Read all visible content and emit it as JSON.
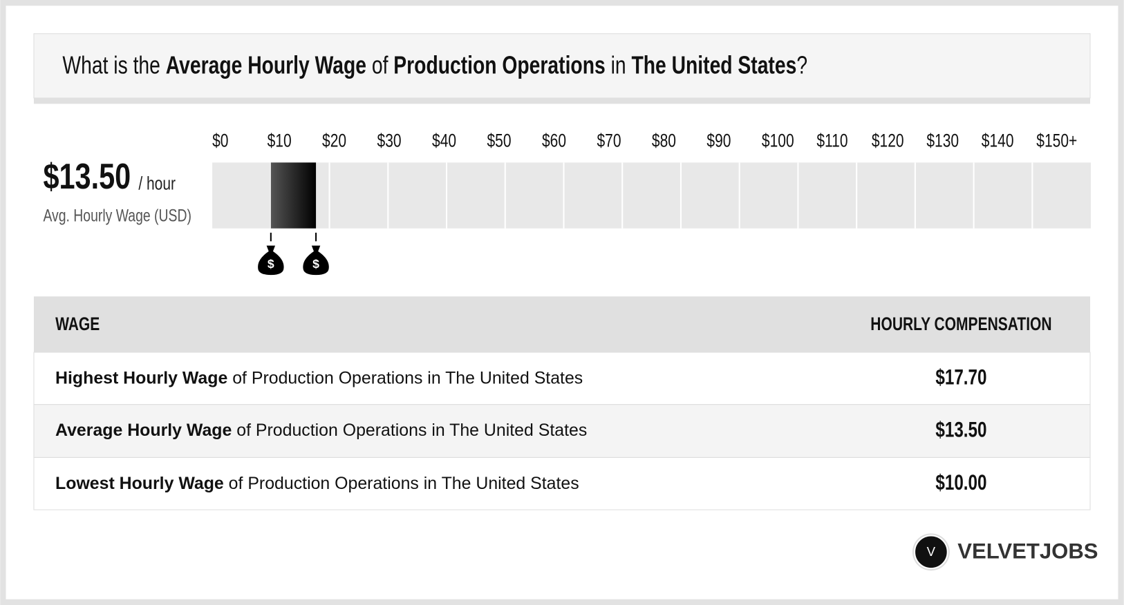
{
  "header": {
    "title": [
      {
        "text": "What is the ",
        "bold": false
      },
      {
        "text": "Average Hourly Wage",
        "bold": true
      },
      {
        "text": " of ",
        "bold": false
      },
      {
        "text": "Production Operations",
        "bold": true
      },
      {
        "text": " in ",
        "bold": false
      },
      {
        "text": "The United States",
        "bold": true
      },
      {
        "text": "?",
        "bold": false
      }
    ]
  },
  "summary": {
    "value": "$13.50",
    "unit": "/ hour",
    "label": "Avg. Hourly Wage (USD)"
  },
  "chart_data": {
    "type": "range",
    "xlim": [
      0,
      150
    ],
    "xticks": [
      {
        "value": 0,
        "label": "$0"
      },
      {
        "value": 10,
        "label": "$10"
      },
      {
        "value": 20,
        "label": "$20"
      },
      {
        "value": 30,
        "label": "$30"
      },
      {
        "value": 40,
        "label": "$40"
      },
      {
        "value": 50,
        "label": "$50"
      },
      {
        "value": 60,
        "label": "$60"
      },
      {
        "value": 70,
        "label": "$70"
      },
      {
        "value": 80,
        "label": "$80"
      },
      {
        "value": 90,
        "label": "$90"
      },
      {
        "value": 100,
        "label": "$100"
      },
      {
        "value": 110,
        "label": "$110"
      },
      {
        "value": 120,
        "label": "$120"
      },
      {
        "value": 130,
        "label": "$130"
      },
      {
        "value": 140,
        "label": "$140"
      },
      {
        "value": 150,
        "label": "$150+"
      }
    ],
    "low": 10,
    "high": 17.7
  },
  "table": {
    "header": [
      "WAGE",
      "HOURLY COMPENSATION"
    ],
    "rows": [
      {
        "bold": "Highest Hourly Wage",
        "rest": " of Production Operations in The United States",
        "value": "$17.70"
      },
      {
        "bold": "Average Hourly Wage",
        "rest": " of Production Operations in The United States",
        "value": "$13.50"
      },
      {
        "bold": "Lowest Hourly Wage",
        "rest": " of Production Operations in The United States",
        "value": "$10.00"
      }
    ]
  },
  "brand": {
    "mark": "V",
    "name": "VELVETJOBS"
  }
}
